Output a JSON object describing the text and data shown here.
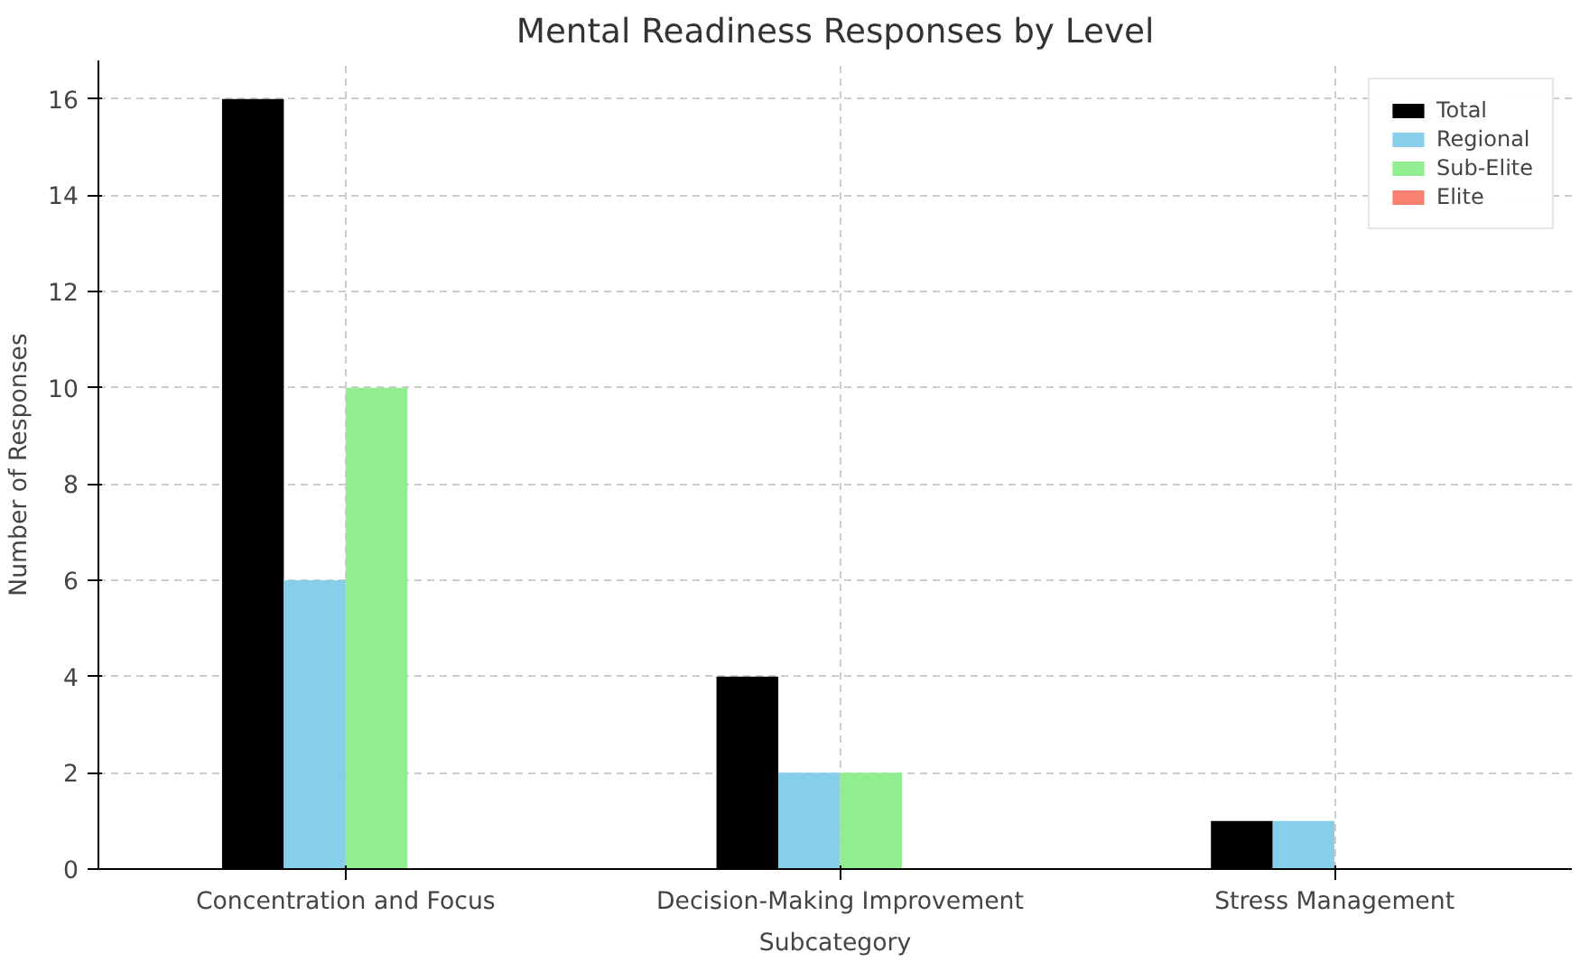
{
  "chart_data": {
    "type": "bar",
    "title": "Mental Readiness Responses by Level",
    "xlabel": "Subcategory",
    "ylabel": "Number of Responses",
    "categories": [
      "Concentration and Focus",
      "Decision-Making Improvement",
      "Stress Management"
    ],
    "series": [
      {
        "name": "Total",
        "color": "#000000",
        "values": [
          16,
          4,
          1
        ]
      },
      {
        "name": "Regional",
        "color": "#87ceeb",
        "values": [
          6,
          2,
          1
        ]
      },
      {
        "name": "Sub-Elite",
        "color": "#90ee90",
        "values": [
          10,
          2,
          0
        ]
      },
      {
        "name": "Elite",
        "color": "#fa8072",
        "values": [
          0,
          0,
          0
        ]
      }
    ],
    "ylim": [
      0,
      16.8
    ],
    "yticks": [
      0,
      2,
      4,
      6,
      8,
      10,
      12,
      14,
      16
    ],
    "grid": true,
    "legend": "top right"
  }
}
